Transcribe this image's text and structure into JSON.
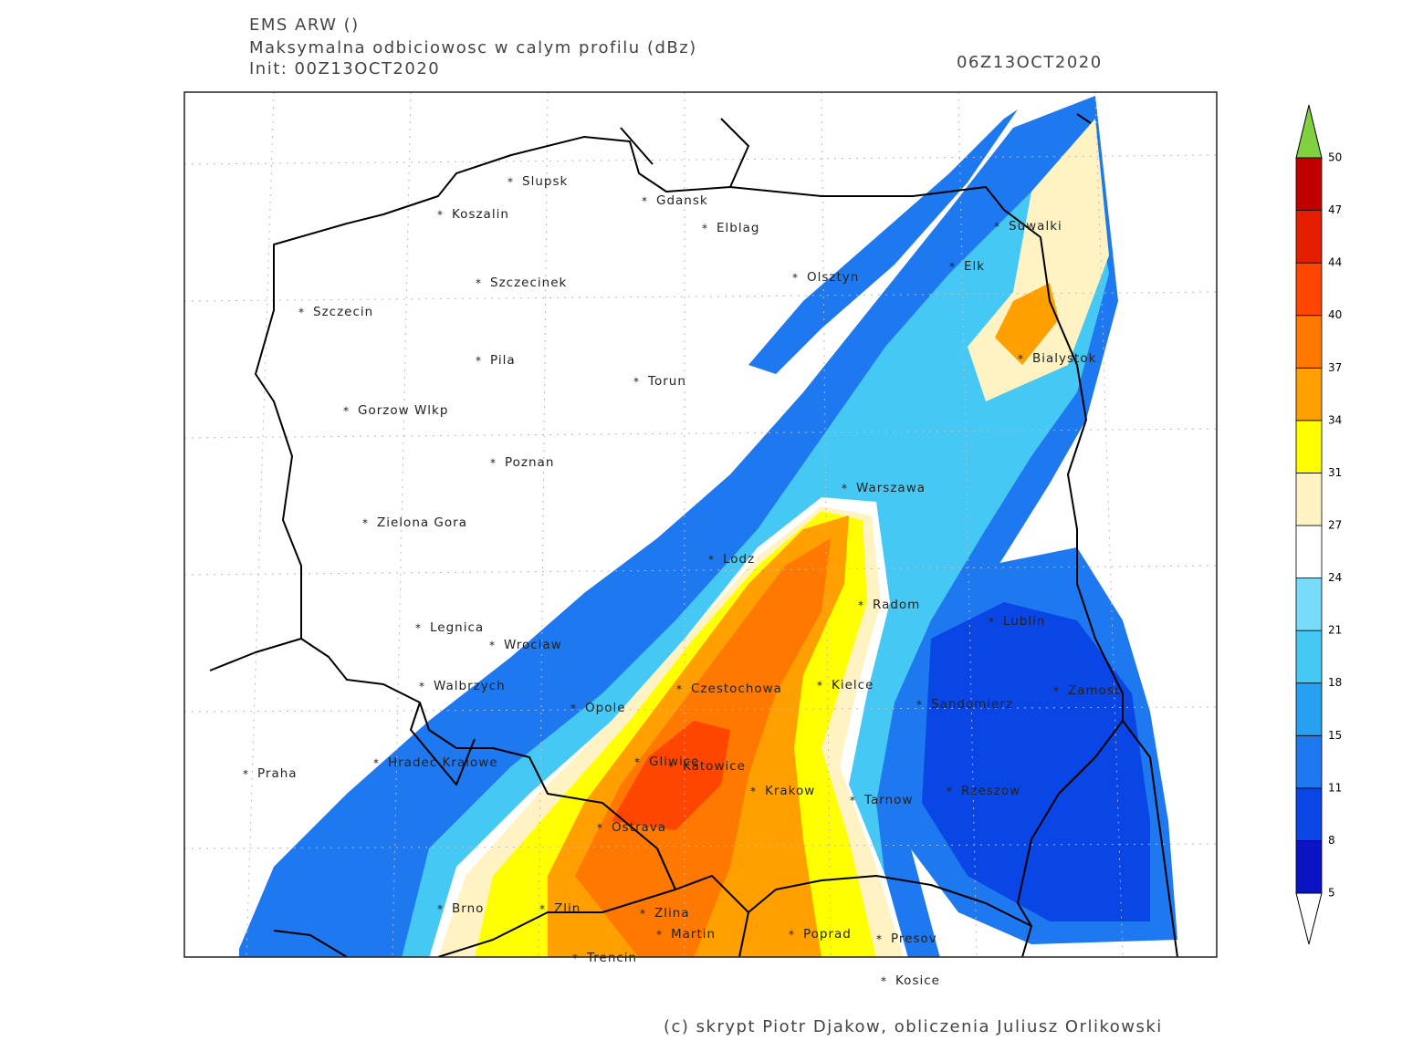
{
  "header": {
    "model": "EMS ARW ()",
    "field": "Maksymalna odbiciowosc w calym profilu (dBz)",
    "init": "Init: 00Z13OCT2020",
    "valid": "06Z13OCT2020"
  },
  "cities": [
    "Slupsk",
    "Gdansk",
    "Koszalin",
    "Elblag",
    "Suwalki",
    "Elk",
    "Olsztyn",
    "Szczecinek",
    "Szczecin",
    "Bialystok",
    "Pila",
    "Torun",
    "Gorzow Wlkp",
    "Poznan",
    "Warszawa",
    "Zielona Gora",
    "Lodz",
    "Radom",
    "Lublin",
    "Legnica",
    "Wroclaw",
    "Walbrzych",
    "Czestochowa",
    "Kielce",
    "Zamosc",
    "Opole",
    "Sandomierz",
    "Hradec Kralowe",
    "Gliwice",
    "Katowice",
    "Praha",
    "Krakow",
    "Rzeszow",
    "Tarnow",
    "Ostrava",
    "Brno",
    "Zlin",
    "Zlina",
    "Martin",
    "Poprad",
    "Presov",
    "Trencin",
    "Kosice"
  ],
  "colorbar": {
    "levels": [
      5,
      8,
      11,
      15,
      18,
      21,
      24,
      27,
      31,
      34,
      37,
      40,
      44,
      47,
      50
    ],
    "colors": [
      "#0a14c4",
      "#0a46e6",
      "#1e78f0",
      "#28a0f0",
      "#46c8f5",
      "#78dcf8",
      "#ffffff",
      "#fff3c4",
      "#ffff00",
      "#ffa000",
      "#ff7800",
      "#ff4600",
      "#e61e00",
      "#c00000"
    ],
    "over_color": "#80d040",
    "under_color": "#ffffff"
  },
  "footer": "(c) skrypt Piotr Djakow, obliczenia Juliusz Orlikowski"
}
